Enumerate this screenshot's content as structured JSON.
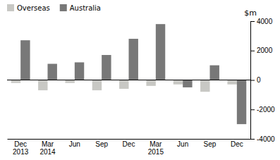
{
  "chart_data": {
    "type": "bar",
    "categories": [
      "Dec\n2013",
      "Mar\n2014",
      "Jun",
      "Sep",
      "Dec",
      "Mar\n2015",
      "Jun",
      "Sep",
      "Dec"
    ],
    "series": [
      {
        "name": "Overseas",
        "color": "#c8c8c4",
        "values": [
          -200,
          -700,
          -200,
          -700,
          -600,
          -400,
          -300,
          -800,
          -300
        ]
      },
      {
        "name": "Australia",
        "color": "#787878",
        "values": [
          2700,
          1100,
          1200,
          1700,
          2800,
          3800,
          -500,
          1000,
          -3000
        ]
      }
    ],
    "ylim": [
      -4000,
      4000
    ],
    "yticks": [
      -4000,
      -2000,
      0,
      2000,
      4000
    ],
    "ylabel": "$m",
    "legend": "upper left",
    "grid": false
  }
}
